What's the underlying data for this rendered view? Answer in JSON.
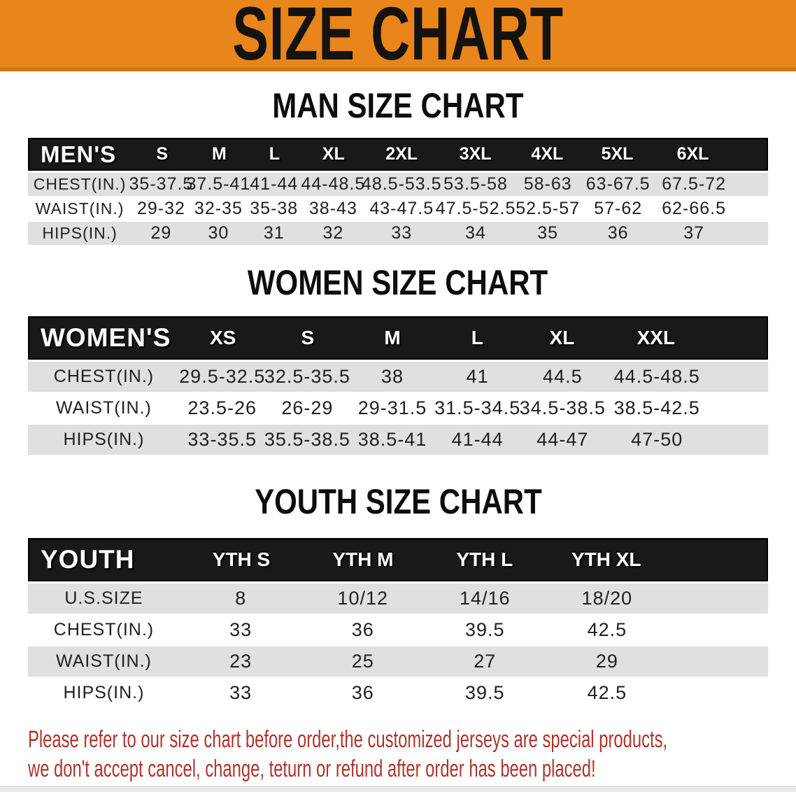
{
  "banner": {
    "title": "SIZE CHART"
  },
  "men": {
    "title": "MAN SIZE CHART",
    "table": {
      "header_label": "MEN'S",
      "columns": [
        "S",
        "M",
        "L",
        "XL",
        "2XL",
        "3XL",
        "4XL",
        "5XL",
        "6XL"
      ],
      "rows": [
        {
          "label": "CHEST(IN.)",
          "values": [
            "35-37.5",
            "37.5-41",
            "41-44",
            "44-48.5",
            "48.5-53.5",
            "53.5-58",
            "58-63",
            "63-67.5",
            "67.5-72"
          ]
        },
        {
          "label": "WAIST(IN.)",
          "values": [
            "29-32",
            "32-35",
            "35-38",
            "38-43",
            "43-47.5",
            "47.5-52.5",
            "52.5-57",
            "57-62",
            "62-66.5"
          ]
        },
        {
          "label": "HIPS(IN.)",
          "values": [
            "29",
            "30",
            "31",
            "32",
            "33",
            "34",
            "35",
            "36",
            "37"
          ]
        }
      ]
    }
  },
  "women": {
    "title": "WOMEN SIZE CHART",
    "table": {
      "header_label": "WOMEN'S",
      "columns": [
        "XS",
        "S",
        "M",
        "L",
        "XL",
        "XXL"
      ],
      "rows": [
        {
          "label": "CHEST(IN.)",
          "values": [
            "29.5-32.5",
            "32.5-35.5",
            "38",
            "41",
            "44.5",
            "44.5-48.5"
          ]
        },
        {
          "label": "WAIST(IN.)",
          "values": [
            "23.5-26",
            "26-29",
            "29-31.5",
            "31.5-34.5",
            "34.5-38.5",
            "38.5-42.5"
          ]
        },
        {
          "label": "HIPS(IN.)",
          "values": [
            "33-35.5",
            "35.5-38.5",
            "38.5-41",
            "41-44",
            "44-47",
            "47-50"
          ]
        }
      ]
    }
  },
  "youth": {
    "title": "YOUTH SIZE CHART",
    "table": {
      "header_label": "YOUTH",
      "columns": [
        "YTH S",
        "YTH M",
        "YTH L",
        "YTH XL"
      ],
      "rows": [
        {
          "label": "U.S.SIZE",
          "values": [
            "8",
            "10/12",
            "14/16",
            "18/20"
          ]
        },
        {
          "label": "CHEST(IN.)",
          "values": [
            "33",
            "36",
            "39.5",
            "42.5"
          ]
        },
        {
          "label": "WAIST(IN.)",
          "values": [
            "23",
            "25",
            "27",
            "29"
          ]
        },
        {
          "label": "HIPS(IN.)",
          "values": [
            "33",
            "36",
            "39.5",
            "42.5"
          ]
        }
      ]
    }
  },
  "disclaimer": {
    "line1": "Please refer to our size chart before order,the customized jerseys are special products,",
    "line2": "we don't accept cancel, change, teturn or refund after order has been placed!"
  },
  "colors": {
    "banner_bg": "#E8861C",
    "banner_edge": "#D3740E",
    "header_bg": "#191919",
    "stripe": "#E0E0E0",
    "disclaimer": "#AE342C"
  }
}
